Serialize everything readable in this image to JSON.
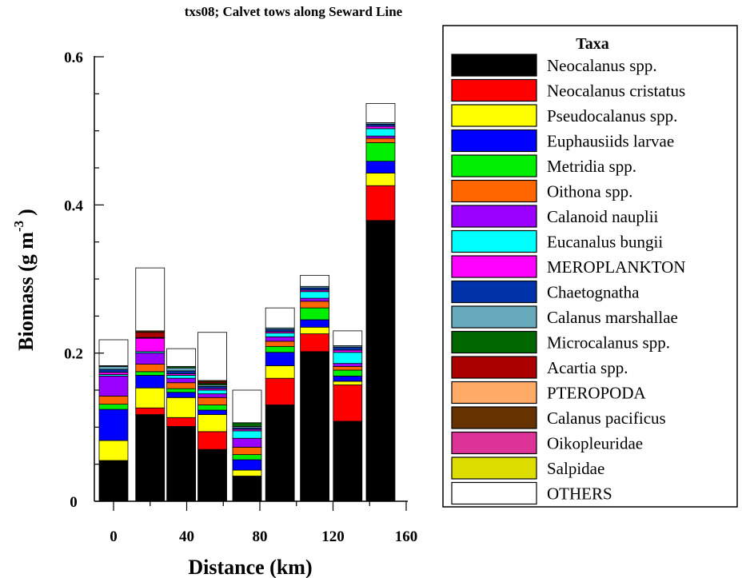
{
  "chart_data": {
    "type": "bar",
    "stacked": true,
    "title": "txs08; Calvet tows along Seward Line",
    "xlabel": "Distance (km)",
    "ylabel_main": "Biomass (g m",
    "ylabel_exp": "-3",
    "ylabel_close": ")",
    "x_ticks": [
      0,
      40,
      80,
      120,
      160
    ],
    "y_ticks": [
      0,
      0.2,
      0.4,
      0.6
    ],
    "xlim": [
      -10,
      160
    ],
    "ylim": [
      0,
      0.6
    ],
    "grid": false,
    "legend_title": "Taxa",
    "legend_position": "right",
    "x": [
      0,
      20,
      37,
      54,
      73,
      91,
      110,
      128,
      146
    ],
    "series": [
      {
        "name": "Neocalanus spp.",
        "color": "#000000",
        "values": [
          0.055,
          0.117,
          0.101,
          0.07,
          0.034,
          0.13,
          0.202,
          0.108,
          0.379
        ]
      },
      {
        "name": "Neocalanus cristatus",
        "color": "#ff0000",
        "values": [
          0.0,
          0.009,
          0.012,
          0.024,
          0.0,
          0.036,
          0.024,
          0.049,
          0.047
        ]
      },
      {
        "name": "Pseudocalanus spp.",
        "color": "#ffff00",
        "values": [
          0.027,
          0.027,
          0.027,
          0.023,
          0.008,
          0.017,
          0.009,
          0.005,
          0.017
        ]
      },
      {
        "name": "Euphausiids larvae",
        "color": "#0000ff",
        "values": [
          0.042,
          0.017,
          0.007,
          0.006,
          0.014,
          0.018,
          0.01,
          0.007,
          0.016
        ]
      },
      {
        "name": "Metridia spp.",
        "color": "#00ee00",
        "values": [
          0.007,
          0.005,
          0.005,
          0.007,
          0.007,
          0.008,
          0.016,
          0.008,
          0.025
        ]
      },
      {
        "name": "Oithona spp.",
        "color": "#ff6600",
        "values": [
          0.011,
          0.01,
          0.008,
          0.01,
          0.01,
          0.007,
          0.009,
          0.005,
          0.006
        ]
      },
      {
        "name": "Calanoid nauplii",
        "color": "#9900ff",
        "values": [
          0.027,
          0.015,
          0.006,
          0.005,
          0.012,
          0.006,
          0.004,
          0.004,
          0.003
        ]
      },
      {
        "name": "Eucanalus bungii",
        "color": "#00ffff",
        "values": [
          0.002,
          0.002,
          0.004,
          0.005,
          0.01,
          0.005,
          0.009,
          0.015,
          0.01
        ]
      },
      {
        "name": "MEROPLANKTON",
        "color": "#ff00ff",
        "values": [
          0.003,
          0.018,
          0.002,
          0.002,
          0.002,
          0.002,
          0.002,
          0.003,
          0.003
        ]
      },
      {
        "name": "Chaetognatha",
        "color": "#0033aa",
        "values": [
          0.004,
          0.001,
          0.004,
          0.003,
          0.002,
          0.003,
          0.003,
          0.004,
          0.003
        ]
      },
      {
        "name": "Calanus marshallae",
        "color": "#66aabb",
        "values": [
          0.004,
          0.0,
          0.004,
          0.002,
          0.002,
          0.002,
          0.002,
          0.002,
          0.002
        ]
      },
      {
        "name": "Microcalanus spp.",
        "color": "#006600",
        "values": [
          0.001,
          0.0,
          0.002,
          0.002,
          0.005,
          0.0,
          0.0,
          0.0,
          0.0
        ]
      },
      {
        "name": "Acartia spp.",
        "color": "#aa0000",
        "values": [
          0.0,
          0.007,
          0.0,
          0.002,
          0.0,
          0.0,
          0.0,
          0.0,
          0.0
        ]
      },
      {
        "name": "PTEROPODA",
        "color": "#ffaa66",
        "values": [
          0.0,
          0.0,
          0.0,
          0.0,
          0.0,
          0.0,
          0.0,
          0.0,
          0.0
        ]
      },
      {
        "name": "Calanus pacificus",
        "color": "#663300",
        "values": [
          0.0,
          0.002,
          0.0,
          0.002,
          0.0,
          0.0,
          0.0,
          0.0,
          0.0
        ]
      },
      {
        "name": "Oikopleuridae",
        "color": "#dd3399",
        "values": [
          0.0,
          0.0,
          0.0,
          0.0,
          0.0,
          0.0,
          0.0,
          0.0,
          0.0
        ]
      },
      {
        "name": "Salpidae",
        "color": "#dddd00",
        "values": [
          0.0,
          0.0,
          0.0,
          0.0,
          0.0,
          0.0,
          0.0,
          0.0,
          0.0
        ]
      },
      {
        "name": "OTHERS",
        "color": "#ffffff",
        "values": [
          0.035,
          0.085,
          0.024,
          0.065,
          0.044,
          0.027,
          0.015,
          0.02,
          0.026
        ]
      }
    ]
  }
}
